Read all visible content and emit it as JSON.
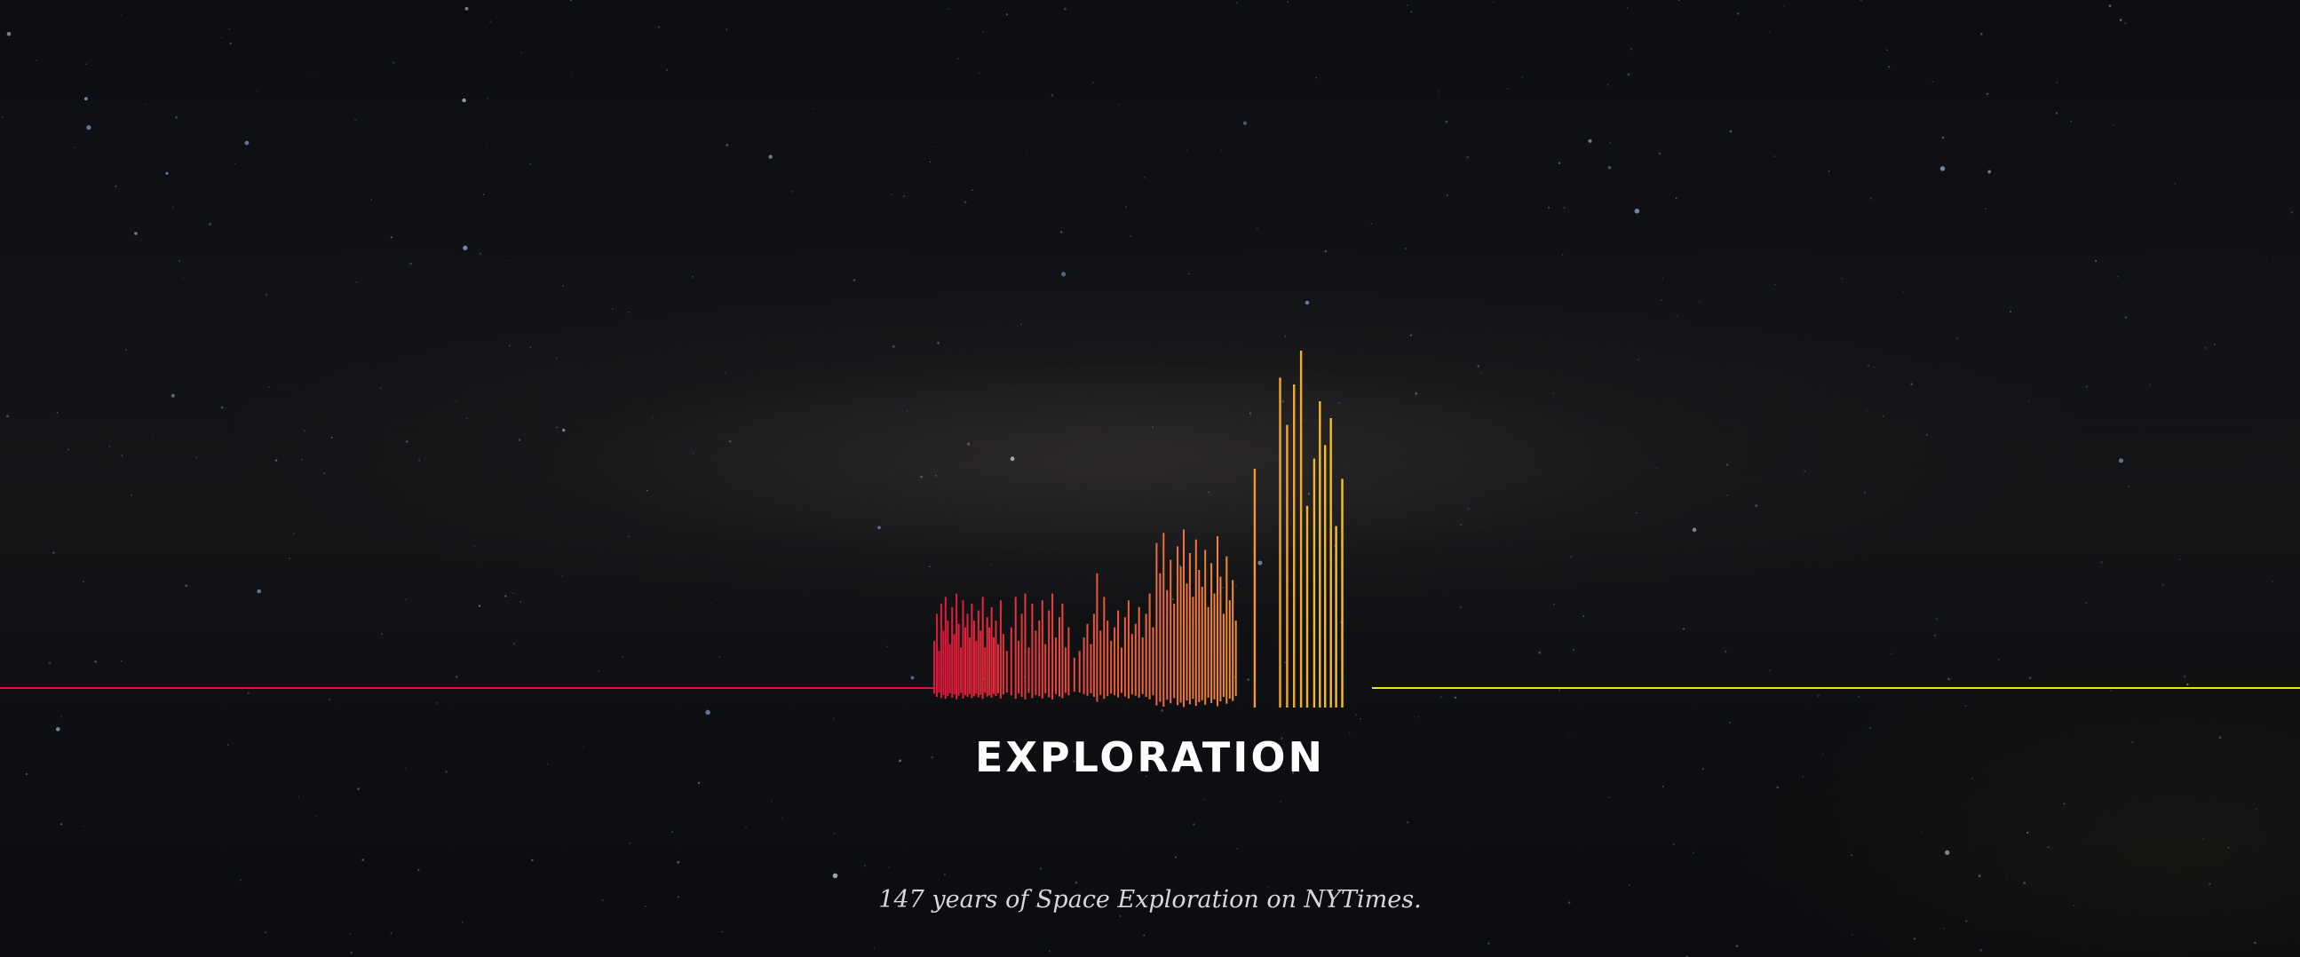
{
  "title": "EXPLORATION",
  "subtitle": "147 years of Space Exploration on NYTimes.",
  "colors": {
    "start": "#e0143c",
    "mid": "#f07a3a",
    "end": "#f5d21c",
    "baseline_left": "#e0143c",
    "baseline_right": "#f2e01e"
  },
  "chart_data": {
    "type": "bar",
    "xlabel": "",
    "ylabel": "",
    "grid": false,
    "legend": "none",
    "x_range": [
      0,
      1
    ],
    "ylim": [
      0,
      100
    ],
    "bars": [
      {
        "x": 0.0,
        "v": 14
      },
      {
        "x": 0.006,
        "v": 22
      },
      {
        "x": 0.011,
        "v": 11
      },
      {
        "x": 0.016,
        "v": 25
      },
      {
        "x": 0.021,
        "v": 17
      },
      {
        "x": 0.026,
        "v": 27
      },
      {
        "x": 0.031,
        "v": 20
      },
      {
        "x": 0.036,
        "v": 13
      },
      {
        "x": 0.041,
        "v": 24
      },
      {
        "x": 0.046,
        "v": 16
      },
      {
        "x": 0.051,
        "v": 28
      },
      {
        "x": 0.056,
        "v": 19
      },
      {
        "x": 0.061,
        "v": 12
      },
      {
        "x": 0.066,
        "v": 26
      },
      {
        "x": 0.071,
        "v": 18
      },
      {
        "x": 0.076,
        "v": 22
      },
      {
        "x": 0.081,
        "v": 15
      },
      {
        "x": 0.086,
        "v": 25
      },
      {
        "x": 0.091,
        "v": 20
      },
      {
        "x": 0.096,
        "v": 14
      },
      {
        "x": 0.101,
        "v": 23
      },
      {
        "x": 0.106,
        "v": 17
      },
      {
        "x": 0.111,
        "v": 27
      },
      {
        "x": 0.116,
        "v": 12
      },
      {
        "x": 0.121,
        "v": 21
      },
      {
        "x": 0.126,
        "v": 18
      },
      {
        "x": 0.131,
        "v": 24
      },
      {
        "x": 0.136,
        "v": 15
      },
      {
        "x": 0.141,
        "v": 20
      },
      {
        "x": 0.146,
        "v": 13
      },
      {
        "x": 0.152,
        "v": 26
      },
      {
        "x": 0.158,
        "v": 16
      },
      {
        "x": 0.166,
        "v": 11
      },
      {
        "x": 0.176,
        "v": 18
      },
      {
        "x": 0.186,
        "v": 27
      },
      {
        "x": 0.193,
        "v": 14
      },
      {
        "x": 0.2,
        "v": 22
      },
      {
        "x": 0.208,
        "v": 28
      },
      {
        "x": 0.216,
        "v": 12
      },
      {
        "x": 0.224,
        "v": 25
      },
      {
        "x": 0.232,
        "v": 17
      },
      {
        "x": 0.24,
        "v": 20
      },
      {
        "x": 0.247,
        "v": 26
      },
      {
        "x": 0.254,
        "v": 13
      },
      {
        "x": 0.262,
        "v": 23
      },
      {
        "x": 0.27,
        "v": 28
      },
      {
        "x": 0.278,
        "v": 15
      },
      {
        "x": 0.286,
        "v": 21
      },
      {
        "x": 0.293,
        "v": 25
      },
      {
        "x": 0.3,
        "v": 12
      },
      {
        "x": 0.307,
        "v": 18
      },
      {
        "x": 0.32,
        "v": 9
      },
      {
        "x": 0.332,
        "v": 11
      },
      {
        "x": 0.342,
        "v": 15
      },
      {
        "x": 0.35,
        "v": 19
      },
      {
        "x": 0.358,
        "v": 13
      },
      {
        "x": 0.365,
        "v": 22
      },
      {
        "x": 0.372,
        "v": 34
      },
      {
        "x": 0.38,
        "v": 17
      },
      {
        "x": 0.388,
        "v": 27
      },
      {
        "x": 0.396,
        "v": 20
      },
      {
        "x": 0.404,
        "v": 14
      },
      {
        "x": 0.412,
        "v": 18
      },
      {
        "x": 0.42,
        "v": 23
      },
      {
        "x": 0.428,
        "v": 12
      },
      {
        "x": 0.436,
        "v": 21
      },
      {
        "x": 0.444,
        "v": 26
      },
      {
        "x": 0.452,
        "v": 16
      },
      {
        "x": 0.46,
        "v": 19
      },
      {
        "x": 0.468,
        "v": 24
      },
      {
        "x": 0.476,
        "v": 15
      },
      {
        "x": 0.484,
        "v": 22
      },
      {
        "x": 0.492,
        "v": 28
      },
      {
        "x": 0.5,
        "v": 18
      },
      {
        "x": 0.508,
        "v": 43
      },
      {
        "x": 0.516,
        "v": 34
      },
      {
        "x": 0.524,
        "v": 46
      },
      {
        "x": 0.532,
        "v": 29
      },
      {
        "x": 0.54,
        "v": 38
      },
      {
        "x": 0.548,
        "v": 25
      },
      {
        "x": 0.556,
        "v": 42
      },
      {
        "x": 0.563,
        "v": 36
      },
      {
        "x": 0.57,
        "v": 47
      },
      {
        "x": 0.577,
        "v": 31
      },
      {
        "x": 0.584,
        "v": 40
      },
      {
        "x": 0.591,
        "v": 27
      },
      {
        "x": 0.598,
        "v": 44
      },
      {
        "x": 0.605,
        "v": 35
      },
      {
        "x": 0.612,
        "v": 30
      },
      {
        "x": 0.619,
        "v": 41
      },
      {
        "x": 0.626,
        "v": 24
      },
      {
        "x": 0.633,
        "v": 37
      },
      {
        "x": 0.64,
        "v": 28
      },
      {
        "x": 0.647,
        "v": 45
      },
      {
        "x": 0.654,
        "v": 33
      },
      {
        "x": 0.661,
        "v": 22
      },
      {
        "x": 0.668,
        "v": 39
      },
      {
        "x": 0.675,
        "v": 26
      },
      {
        "x": 0.682,
        "v": 32
      },
      {
        "x": 0.689,
        "v": 20
      },
      {
        "x": 0.732,
        "v": 65
      },
      {
        "x": 0.79,
        "v": 92
      },
      {
        "x": 0.806,
        "v": 78
      },
      {
        "x": 0.822,
        "v": 90
      },
      {
        "x": 0.838,
        "v": 100
      },
      {
        "x": 0.852,
        "v": 54
      },
      {
        "x": 0.868,
        "v": 68
      },
      {
        "x": 0.881,
        "v": 85
      },
      {
        "x": 0.893,
        "v": 72
      },
      {
        "x": 0.906,
        "v": 80
      },
      {
        "x": 0.918,
        "v": 48
      },
      {
        "x": 0.932,
        "v": 62
      }
    ]
  }
}
